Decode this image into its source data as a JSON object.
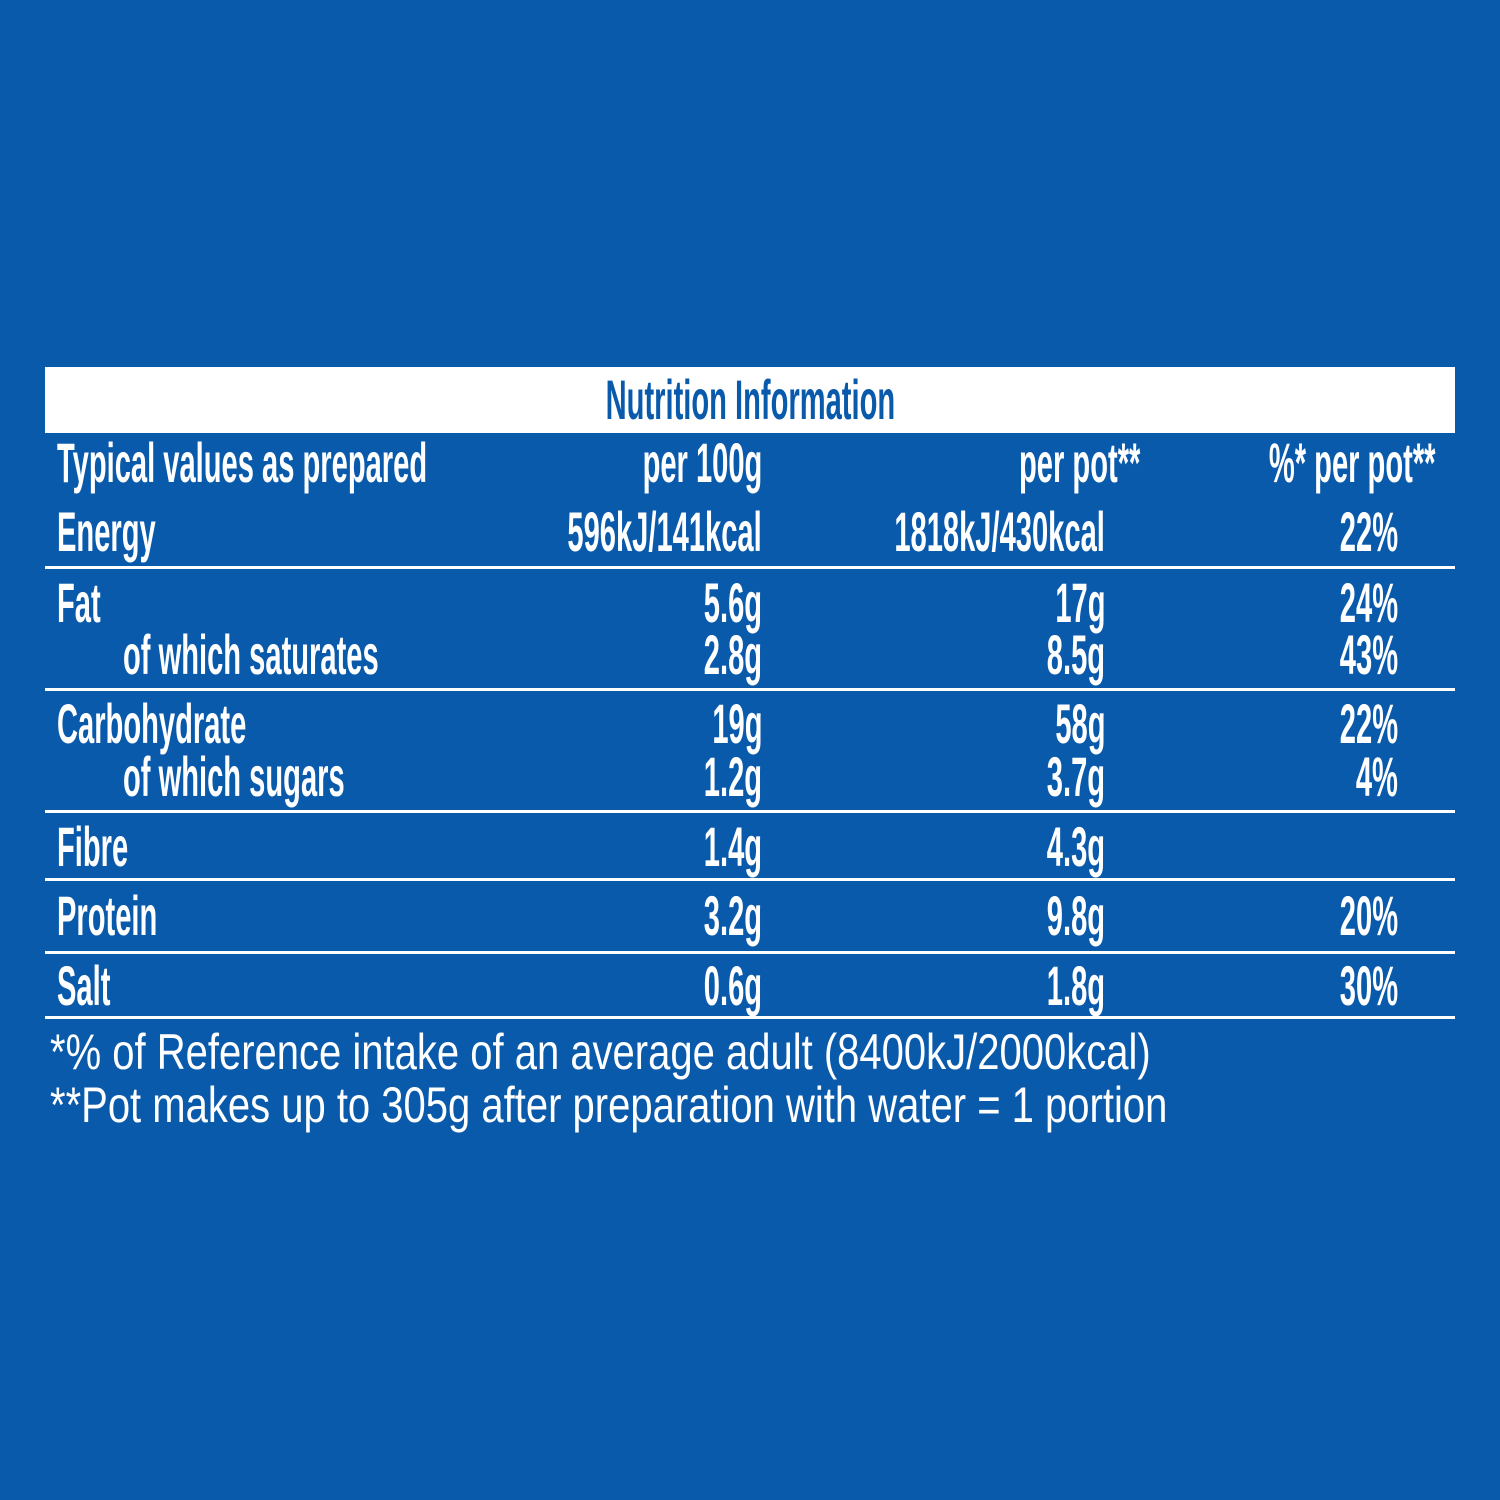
{
  "title": "Nutrition Information",
  "header": {
    "label": "Typical values as prepared",
    "per100g": "per 100g",
    "perpot": "per pot**",
    "ri": "%* per pot**"
  },
  "rows": [
    {
      "label": "Energy",
      "per100g": "596kJ/141kcal",
      "perpot": "1818kJ/430kcal",
      "ri": "22%"
    },
    {
      "label": "Fat",
      "per100g": "5.6g",
      "perpot": "17g",
      "ri": "24%"
    },
    {
      "label": "of which saturates",
      "per100g": "2.8g",
      "perpot": "8.5g",
      "ri": "43%"
    },
    {
      "label": "Carbohydrate",
      "per100g": "19g",
      "perpot": "58g",
      "ri": "22%"
    },
    {
      "label": "of which sugars",
      "per100g": "1.2g",
      "perpot": "3.7g",
      "ri": "4%"
    },
    {
      "label": "Fibre",
      "per100g": "1.4g",
      "perpot": "4.3g",
      "ri": ""
    },
    {
      "label": "Protein",
      "per100g": "3.2g",
      "perpot": "9.8g",
      "ri": "20%"
    },
    {
      "label": "Salt",
      "per100g": "0.6g",
      "perpot": "1.8g",
      "ri": "30%"
    }
  ],
  "footnotes": [
    "*% of Reference intake of an average adult (8400kJ/2000kcal)",
    "**Pot makes up to 305g after preparation with water = 1 portion"
  ],
  "colors": {
    "background": "#0a5aac",
    "title_bar": "#ffffff",
    "text": "#ffffff"
  }
}
